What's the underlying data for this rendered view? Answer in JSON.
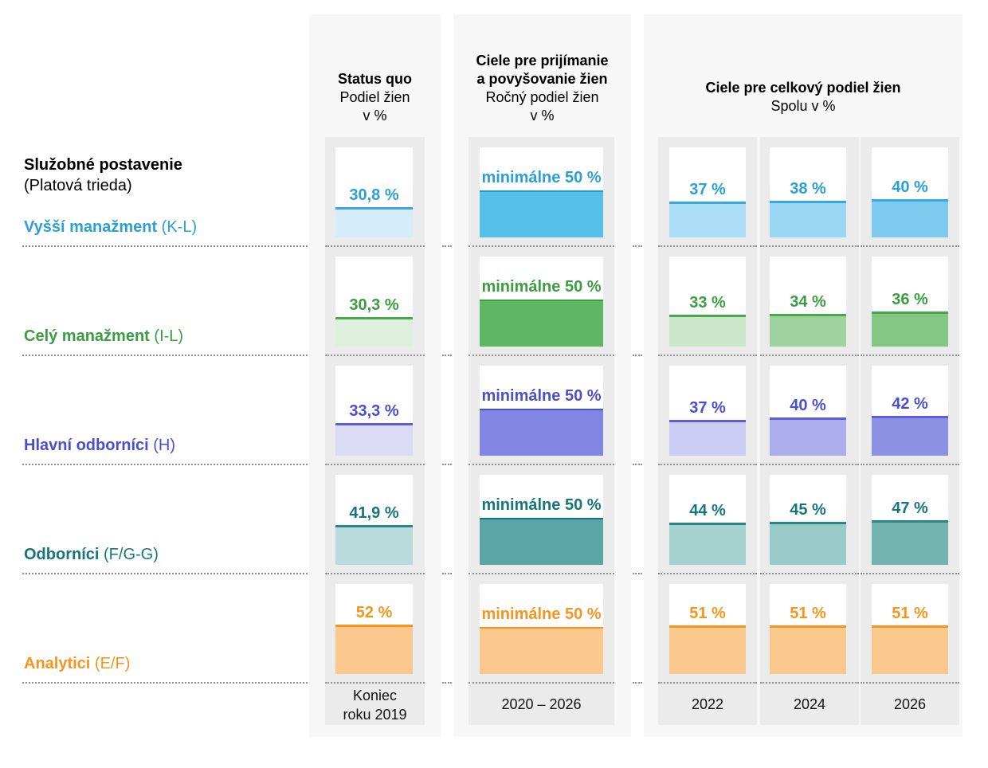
{
  "side": {
    "title": "Služobné postavenie",
    "subtitle": "(Platová trieda)"
  },
  "panels": {
    "status_quo": {
      "title_bold": "Status quo",
      "subtitle_line1": "Podiel žien",
      "subtitle_line2": "v %",
      "footer_line1": "Koniec",
      "footer_line2": "roku 2019"
    },
    "annual": {
      "title_bold_line1": "Ciele pre prijímanie",
      "title_bold_line2": "a povyšovanie žien",
      "subtitle_line1": "Ročný podiel žien",
      "subtitle_line2": "v %",
      "footer": "2020 – 2026"
    },
    "totals": {
      "title_bold": "Ciele pre celkový podiel žien",
      "subtitle": "Spolu v %",
      "footer_years": [
        "2022",
        "2024",
        "2026"
      ]
    }
  },
  "chart_data": {
    "type": "bar",
    "unit": "percent",
    "axis_max": 100,
    "column_groups": [
      "Status quo (Koniec roku 2019)",
      "Ročný cieľ (2020 – 2026)",
      "Celkový podiel 2022",
      "Celkový podiel 2024",
      "Celkový podiel 2026"
    ],
    "rows": [
      {
        "label": "Vyšší manažment",
        "grade": "(K-L)",
        "colors": {
          "accent": "#2A9FD8",
          "bar_border": "#36A9DE",
          "status_quo_fill": "#D5EDFA",
          "target_fill": "#55BEE9",
          "target_border": "#1E9CD7",
          "totals_fills": [
            "#ACDFF7",
            "#9BD7F4",
            "#7FCBEF"
          ]
        },
        "status_quo": {
          "value": 30.8,
          "label": "30,8 %"
        },
        "annual_target": {
          "value": 50,
          "label": "minimálne 50 %"
        },
        "totals": [
          {
            "year": "2022",
            "value": 37,
            "label": "37 %"
          },
          {
            "year": "2024",
            "value": 38,
            "label": "38 %"
          },
          {
            "year": "2026",
            "value": 40,
            "label": "40 %"
          }
        ]
      },
      {
        "label": "Celý manažment",
        "grade": "(I-L)",
        "colors": {
          "accent": "#3A9E41",
          "bar_border": "#49A84E",
          "status_quo_fill": "#DCF0DC",
          "target_fill": "#5FB763",
          "target_border": "#3A9E41",
          "totals_fills": [
            "#CAE7CA",
            "#A0D2A0",
            "#84C784"
          ]
        },
        "status_quo": {
          "value": 30.3,
          "label": "30,3 %"
        },
        "annual_target": {
          "value": 50,
          "label": "minimálne 50 %"
        },
        "totals": [
          {
            "year": "2022",
            "value": 33,
            "label": "33 %"
          },
          {
            "year": "2024",
            "value": 34,
            "label": "34 %"
          },
          {
            "year": "2026",
            "value": 36,
            "label": "36 %"
          }
        ]
      },
      {
        "label": "Hlavní odborníci",
        "grade": "(H)",
        "colors": {
          "accent": "#4B4ECE",
          "bar_border": "#5D60D4",
          "status_quo_fill": "#DBDBF6",
          "target_fill": "#8286E2",
          "target_border": "#4B4ECE",
          "totals_fills": [
            "#CCCCF4",
            "#ADADEC",
            "#8D91E1"
          ]
        },
        "status_quo": {
          "value": 33.3,
          "label": "33,3 %"
        },
        "annual_target": {
          "value": 50,
          "label": "minimálne 50 %"
        },
        "totals": [
          {
            "year": "2022",
            "value": 37,
            "label": "37 %"
          },
          {
            "year": "2024",
            "value": 40,
            "label": "40 %"
          },
          {
            "year": "2026",
            "value": 42,
            "label": "42 %"
          }
        ]
      },
      {
        "label": "Odborníci",
        "grade": "(F/G-G)",
        "colors": {
          "accent": "#17767C",
          "bar_border": "#2A8588",
          "status_quo_fill": "#BADBDB",
          "target_fill": "#5AA5A5",
          "target_border": "#17767C",
          "totals_fills": [
            "#A6D2CF",
            "#98CAC7",
            "#74B4B0"
          ]
        },
        "status_quo": {
          "value": 41.9,
          "label": "41,9 %"
        },
        "annual_target": {
          "value": 50,
          "label": "minimálne 50 %"
        },
        "totals": [
          {
            "year": "2022",
            "value": 44,
            "label": "44 %"
          },
          {
            "year": "2024",
            "value": 45,
            "label": "45 %"
          },
          {
            "year": "2026",
            "value": 47,
            "label": "47 %"
          }
        ]
      },
      {
        "label": "Analytici",
        "grade": "(E/F)",
        "colors": {
          "accent": "#F7941E",
          "bar_border": "#F7941E",
          "status_quo_fill": "#FBC98E",
          "target_fill": "#FBC98E",
          "target_border": "#F7941E",
          "totals_fills": [
            "#FBC98E",
            "#FBC98E",
            "#FBC98E"
          ]
        },
        "status_quo": {
          "value": 52,
          "label": "52 %"
        },
        "annual_target": {
          "value": 50,
          "label": "minimálne 50 %"
        },
        "totals": [
          {
            "year": "2022",
            "value": 51,
            "label": "51 %"
          },
          {
            "year": "2024",
            "value": 51,
            "label": "51 %"
          },
          {
            "year": "2026",
            "value": 51,
            "label": "51 %"
          }
        ]
      }
    ]
  }
}
